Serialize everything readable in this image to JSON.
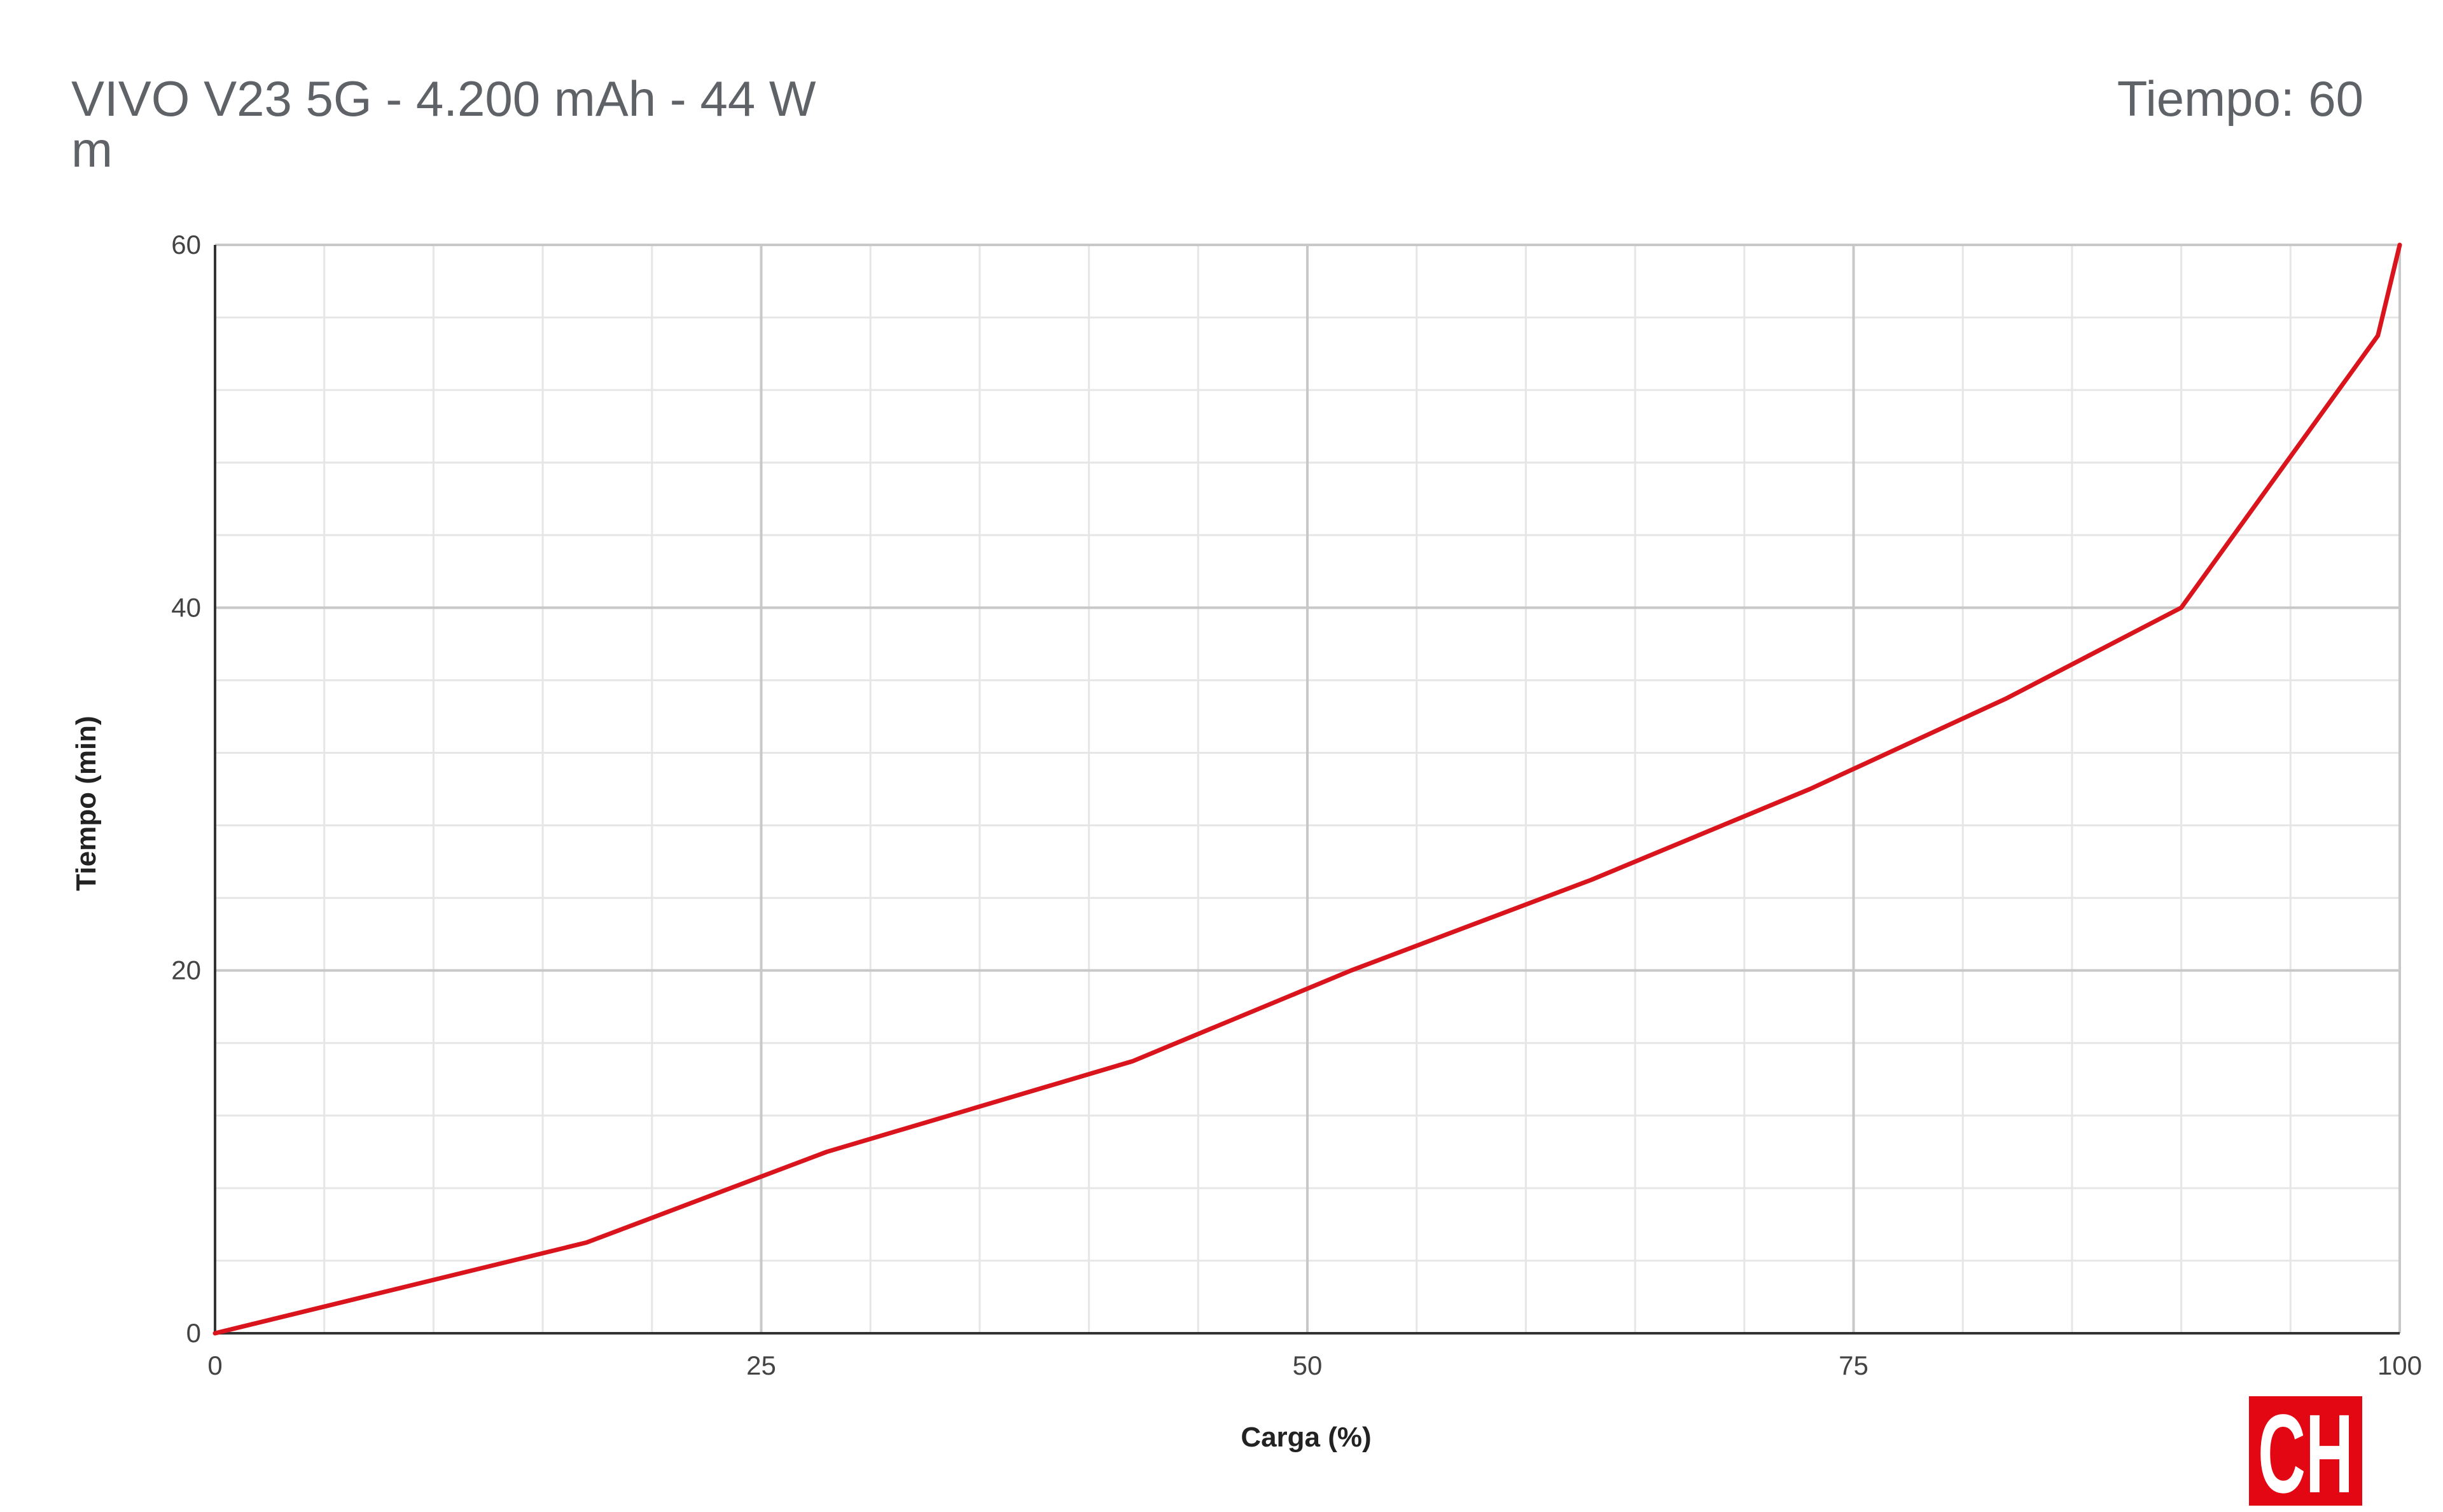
{
  "header": {
    "title_line1": "VIVO V23 5G - 4.200 mAh - 44 W",
    "title_line2": "m",
    "tooltip": "Tiempo: 60"
  },
  "logo": {
    "text": "CH",
    "color": "#e30613"
  },
  "chart_data": {
    "type": "line",
    "xlabel": "Carga (%)",
    "ylabel": "Tiempo (min)",
    "xlim": [
      0,
      100
    ],
    "ylim": [
      0,
      60
    ],
    "x_major_ticks": [
      0,
      25,
      50,
      75,
      100
    ],
    "y_major_ticks": [
      0,
      20,
      40,
      60
    ],
    "x_tick_labels": [
      "0",
      "25",
      "50",
      "75",
      "100"
    ],
    "y_tick_labels": [
      "0",
      "20",
      "40",
      "60"
    ],
    "x_minor_step": 5,
    "y_minor_step": 4,
    "grid": true,
    "legend": "none",
    "series": [
      {
        "color": "#d9141c",
        "points": [
          [
            0,
            0
          ],
          [
            17,
            5
          ],
          [
            28,
            10
          ],
          [
            42,
            15
          ],
          [
            52,
            20
          ],
          [
            63,
            25
          ],
          [
            73,
            30
          ],
          [
            82,
            35
          ],
          [
            90,
            40
          ],
          [
            99,
            55
          ],
          [
            100,
            60
          ]
        ]
      }
    ]
  }
}
